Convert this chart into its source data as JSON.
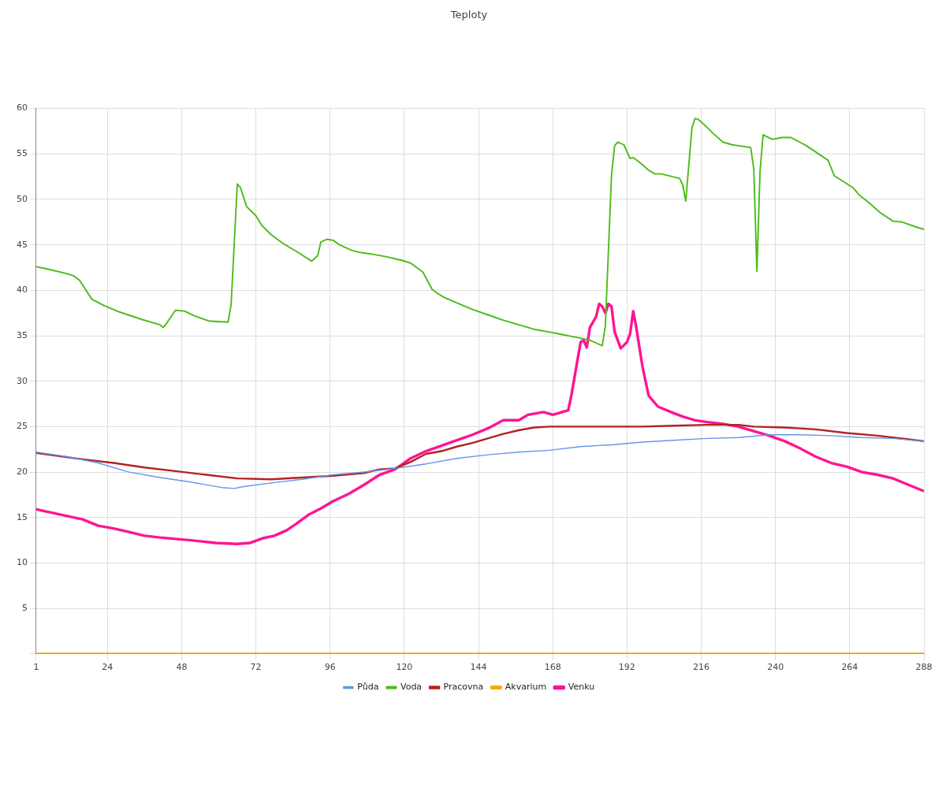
{
  "chart_data": {
    "type": "line",
    "title": "Teploty",
    "legend": "bottom",
    "grid": true,
    "marker": "none",
    "xlim": [
      1,
      288
    ],
    "xticks": [
      1,
      24,
      48,
      72,
      96,
      120,
      144,
      168,
      192,
      216,
      240,
      264,
      288
    ],
    "ylim": [
      0,
      60
    ],
    "yticks": [
      {
        "value": 0,
        "label": null
      },
      5,
      10,
      15,
      20,
      25,
      30,
      35,
      40,
      45,
      50,
      55,
      60
    ],
    "series": [
      {
        "name": "Půda",
        "color": "#6495ed",
        "x": [
          1,
          11,
          21,
          31,
          41,
          51,
          61,
          65,
          68,
          77,
          87,
          97,
          107,
          117,
          127,
          137,
          147,
          157,
          167,
          177,
          187,
          197,
          207,
          218,
          228,
          238,
          248,
          258,
          268,
          278,
          288
        ],
        "values": [
          22.2,
          21.7,
          21.0,
          20.0,
          19.4,
          18.9,
          18.3,
          18.2,
          18.4,
          18.8,
          19.2,
          19.7,
          20.0,
          20.4,
          20.9,
          21.5,
          21.9,
          22.2,
          22.4,
          22.8,
          23.0,
          23.3,
          23.5,
          23.7,
          23.8,
          24.1,
          24.1,
          24.0,
          23.8,
          23.7,
          23.4
        ]
      },
      {
        "name": "Voda",
        "color": "#4cbb17",
        "x": [
          1,
          5,
          10,
          13,
          15,
          19,
          23,
          28,
          35,
          41,
          42,
          43,
          46,
          49,
          52,
          57,
          63,
          64,
          66,
          67,
          69,
          72,
          74,
          77,
          81,
          85,
          90,
          92,
          93,
          95,
          97,
          99,
          103,
          105,
          109,
          114,
          119,
          122,
          126,
          129,
          131,
          133,
          137,
          142,
          147,
          152,
          157,
          162,
          167,
          170,
          176,
          180,
          184,
          185,
          187,
          188,
          189,
          191,
          193,
          194,
          196,
          199,
          201,
          203,
          209,
          210,
          211,
          213,
          214,
          215,
          217,
          220,
          223,
          226,
          228,
          232,
          233,
          234,
          235,
          236,
          239,
          242,
          245,
          250,
          257,
          259,
          265,
          267,
          270,
          274,
          278,
          281,
          286,
          288
        ],
        "values": [
          42.6,
          42.3,
          41.9,
          41.6,
          41.1,
          39.0,
          38.3,
          37.6,
          36.8,
          36.2,
          35.9,
          36.3,
          37.8,
          37.7,
          37.2,
          36.6,
          36.5,
          38.4,
          51.7,
          51.3,
          49.2,
          48.2,
          47.1,
          46.1,
          45.1,
          44.3,
          43.2,
          43.8,
          45.3,
          45.6,
          45.5,
          45.0,
          44.4,
          44.2,
          44.0,
          43.7,
          43.3,
          43.0,
          42.0,
          40.1,
          39.6,
          39.2,
          38.6,
          37.9,
          37.3,
          36.7,
          36.2,
          35.7,
          35.4,
          35.2,
          34.8,
          34.5,
          33.9,
          36.1,
          52.7,
          55.9,
          56.3,
          56.0,
          54.5,
          54.6,
          54.1,
          53.2,
          52.8,
          52.8,
          52.3,
          51.6,
          49.8,
          57.9,
          58.9,
          58.8,
          58.2,
          57.2,
          56.3,
          56.0,
          55.9,
          55.7,
          53.3,
          42.1,
          53.0,
          57.1,
          56.6,
          56.8,
          56.8,
          55.9,
          54.3,
          52.6,
          51.3,
          50.5,
          49.7,
          48.5,
          47.6,
          47.5,
          46.9,
          46.7
        ]
      },
      {
        "name": "Pracovna",
        "color": "#b22222",
        "x": [
          1,
          16,
          26,
          36,
          46,
          56,
          66,
          77,
          87,
          97,
          107,
          112,
          117,
          122,
          127,
          132,
          137,
          142,
          147,
          152,
          157,
          162,
          167,
          180,
          187,
          197,
          207,
          218,
          228,
          233,
          243,
          253,
          263,
          273,
          283,
          288
        ],
        "values": [
          22.1,
          21.4,
          21.0,
          20.5,
          20.1,
          19.7,
          19.3,
          19.2,
          19.4,
          19.6,
          19.9,
          20.3,
          20.4,
          21.1,
          22.0,
          22.3,
          22.8,
          23.2,
          23.7,
          24.2,
          24.6,
          24.9,
          25.0,
          25.0,
          25.0,
          25.0,
          25.1,
          25.2,
          25.2,
          25.0,
          24.9,
          24.7,
          24.3,
          24.0,
          23.6,
          23.4
        ]
      },
      {
        "name": "Akvarium",
        "color": "#ffa500",
        "x": [
          1,
          288
        ],
        "values": [
          0,
          0
        ]
      },
      {
        "name": "Venku",
        "color": "#ff1493",
        "x": [
          1,
          16,
          21,
          26,
          31,
          36,
          41,
          51,
          59,
          66,
          70,
          74,
          78,
          82,
          85,
          89,
          93,
          97,
          102,
          107,
          112,
          117,
          122,
          127,
          132,
          137,
          142,
          147,
          152,
          157,
          160,
          165,
          168,
          170,
          173,
          174,
          177,
          178,
          179,
          180,
          182,
          183,
          184,
          185,
          186,
          187,
          188,
          190,
          192,
          193,
          194,
          195,
          197,
          199,
          202,
          207,
          210,
          214,
          218,
          223,
          228,
          233,
          238,
          243,
          248,
          253,
          258,
          263,
          268,
          273,
          278,
          283,
          288
        ],
        "values": [
          15.9,
          14.8,
          14.1,
          13.8,
          13.4,
          13.0,
          12.8,
          12.5,
          12.2,
          12.1,
          12.2,
          12.7,
          13.0,
          13.6,
          14.3,
          15.3,
          16.0,
          16.8,
          17.6,
          18.6,
          19.7,
          20.3,
          21.5,
          22.3,
          22.9,
          23.5,
          24.1,
          24.8,
          25.7,
          25.7,
          26.3,
          26.6,
          26.3,
          26.5,
          26.8,
          28.4,
          34.3,
          34.5,
          33.7,
          35.9,
          37.1,
          38.5,
          38.2,
          37.5,
          38.5,
          38.2,
          35.4,
          33.6,
          34.3,
          35.2,
          37.7,
          35.9,
          31.6,
          28.4,
          27.2,
          26.5,
          26.1,
          25.7,
          25.5,
          25.3,
          25.0,
          24.5,
          24.0,
          23.4,
          22.6,
          21.7,
          21.0,
          20.6,
          20.0,
          19.7,
          19.3,
          18.6,
          17.9
        ]
      }
    ]
  }
}
